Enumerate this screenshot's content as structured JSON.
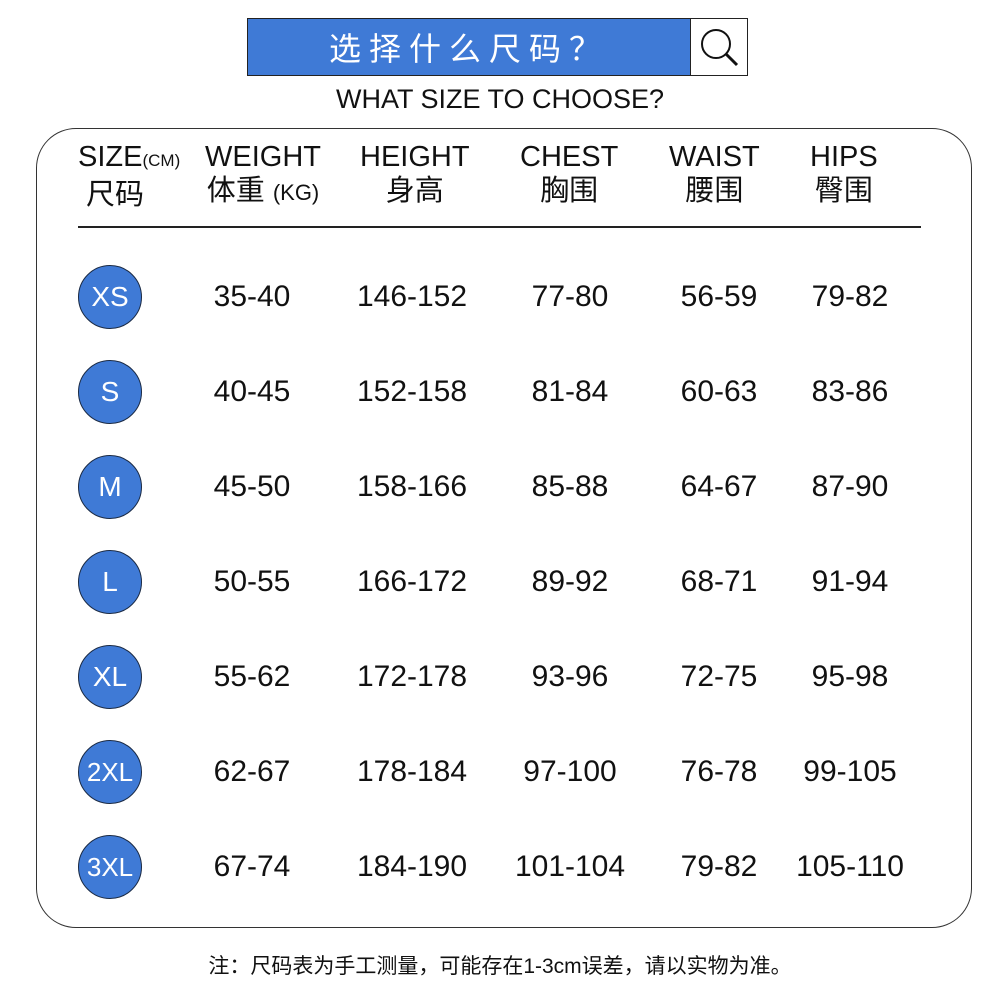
{
  "banner": {
    "title": "选择什么尺码？",
    "subtitle": "WHAT SIZE TO CHOOSE?",
    "accent": "#3f7ad6",
    "icon": "search-icon"
  },
  "headers": [
    {
      "en": "SIZE",
      "unit": "(CM)",
      "zh": "尺码"
    },
    {
      "en": "WEIGHT",
      "zh": "体重",
      "unit": "(KG)"
    },
    {
      "en": "HEIGHT",
      "zh": "身高"
    },
    {
      "en": "CHEST",
      "zh": "胸围"
    },
    {
      "en": "WAIST",
      "zh": "腰围"
    },
    {
      "en": "HIPS",
      "zh": "臀围"
    }
  ],
  "rows": [
    {
      "size": "XS",
      "values": [
        "35-40",
        "146-152",
        "77-80",
        "56-59",
        "79-82"
      ]
    },
    {
      "size": "S",
      "values": [
        "40-45",
        "152-158",
        "81-84",
        "60-63",
        "83-86"
      ]
    },
    {
      "size": "M",
      "values": [
        "45-50",
        "158-166",
        "85-88",
        "64-67",
        "87-90"
      ]
    },
    {
      "size": "L",
      "values": [
        "50-55",
        "166-172",
        "89-92",
        "68-71",
        "91-94"
      ]
    },
    {
      "size": "XL",
      "values": [
        "55-62",
        "172-178",
        "93-96",
        "72-75",
        "95-98"
      ]
    },
    {
      "size": "2XL",
      "values": [
        "62-67",
        "178-184",
        "97-100",
        "76-78",
        "99-105"
      ]
    },
    {
      "size": "3XL",
      "values": [
        "67-74",
        "184-190",
        "101-104",
        "79-82",
        "105-110"
      ]
    }
  ],
  "note": "注：尺码表为手工测量，可能存在1-3cm误差，请以实物为准。"
}
